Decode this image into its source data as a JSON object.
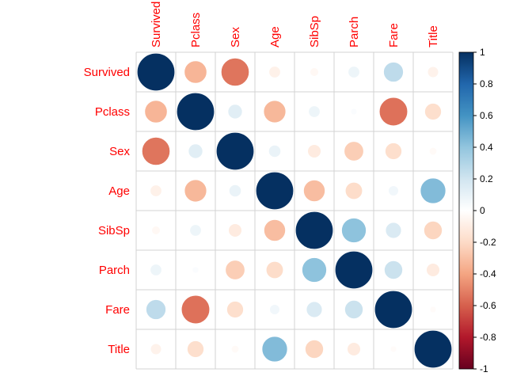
{
  "chart_data": {
    "type": "heatmap",
    "variables": [
      "Survived",
      "Pclass",
      "Sex",
      "Age",
      "SibSp",
      "Parch",
      "Fare",
      "Title"
    ],
    "matrix": [
      [
        1.0,
        -0.34,
        -0.54,
        -0.08,
        -0.04,
        0.08,
        0.26,
        -0.07
      ],
      [
        -0.34,
        1.0,
        0.13,
        -0.33,
        0.08,
        0.02,
        -0.55,
        -0.18
      ],
      [
        -0.54,
        0.13,
        1.0,
        0.09,
        -0.11,
        -0.25,
        -0.18,
        -0.03
      ],
      [
        -0.08,
        -0.33,
        0.09,
        1.0,
        -0.31,
        -0.19,
        0.06,
        0.44
      ],
      [
        -0.04,
        0.08,
        -0.11,
        -0.31,
        1.0,
        0.41,
        0.16,
        -0.22
      ],
      [
        0.08,
        0.02,
        -0.25,
        -0.19,
        0.41,
        1.0,
        0.22,
        -0.11
      ],
      [
        0.26,
        -0.55,
        -0.18,
        0.06,
        0.16,
        0.22,
        1.0,
        -0.02
      ],
      [
        -0.07,
        -0.18,
        -0.03,
        0.44,
        -0.22,
        -0.11,
        -0.02,
        1.0
      ]
    ],
    "colorbar": {
      "range": [
        -1,
        1
      ],
      "ticks": [
        "1",
        "0.8",
        "0.6",
        "0.4",
        "0.2",
        "0",
        "-0.2",
        "-0.4",
        "-0.6",
        "-0.8",
        "-1"
      ],
      "colors": [
        "#67001F",
        "#B2182B",
        "#D6604D",
        "#F4A582",
        "#FDDBC7",
        "#FFFFFF",
        "#D1E5F0",
        "#92C5DE",
        "#4393C3",
        "#2166AC",
        "#053061"
      ]
    },
    "label_color": "#ff0000",
    "grid": true,
    "legend_position": "right"
  }
}
